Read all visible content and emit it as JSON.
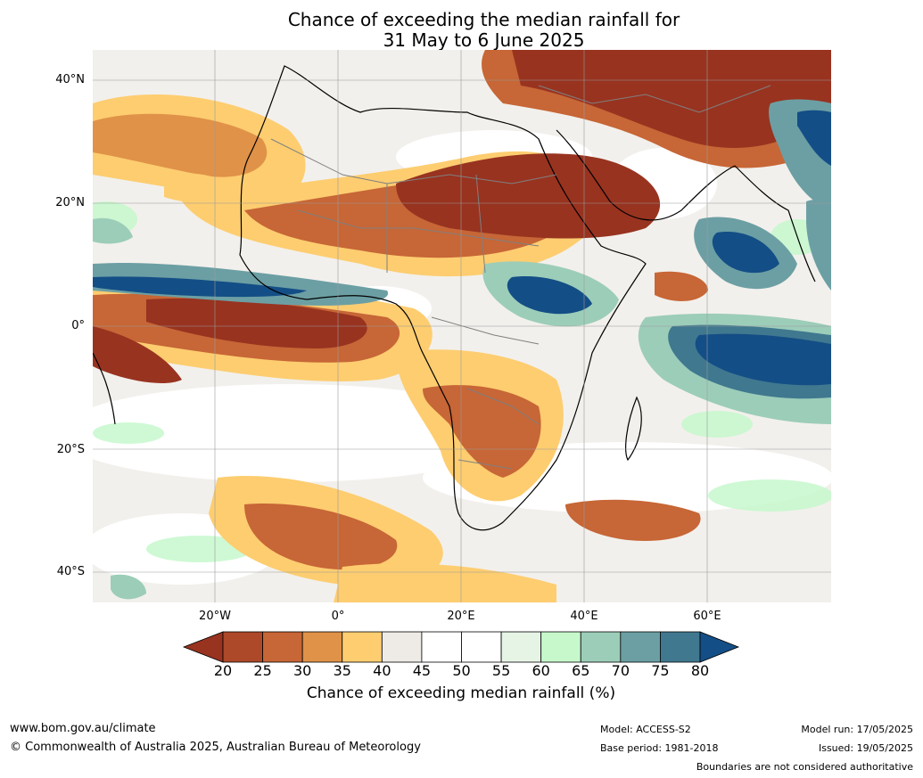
{
  "title": {
    "line1": "Chance of exceeding the median rainfall for",
    "line2": "31 May to 6 June 2025"
  },
  "map": {
    "lat_labels": [
      "40°N",
      "20°N",
      "0°",
      "20°S",
      "40°S"
    ],
    "lon_labels": [
      "20°W",
      "0°",
      "20°E",
      "40°E",
      "60°E"
    ]
  },
  "colorbar": {
    "ticks": [
      "20",
      "25",
      "30",
      "35",
      "40",
      "45",
      "50",
      "55",
      "60",
      "65",
      "70",
      "75",
      "80"
    ],
    "colors": [
      "#983320",
      "#ad4828",
      "#c76636",
      "#e09248",
      "#fdcd70",
      "#eeebe7",
      "#ffffff",
      "#ffffff",
      "#e6f4e6",
      "#c6f8cc",
      "#9ccdb9",
      "#6c9fa4",
      "#40788f",
      "#144e86"
    ],
    "label": "Chance of exceeding median rainfall (%)"
  },
  "footer": {
    "website": "www.bom.gov.au/climate",
    "copyright": "© Commonwealth of Australia 2025, Australian Bureau of Meteorology",
    "model": "Model: ACCESS-S2",
    "base_period": "Base period: 1981-2018",
    "model_run": "Model run: 17/05/2025",
    "issued": "Issued: 19/05/2025",
    "disclaimer": "Boundaries are not considered authoritative"
  }
}
